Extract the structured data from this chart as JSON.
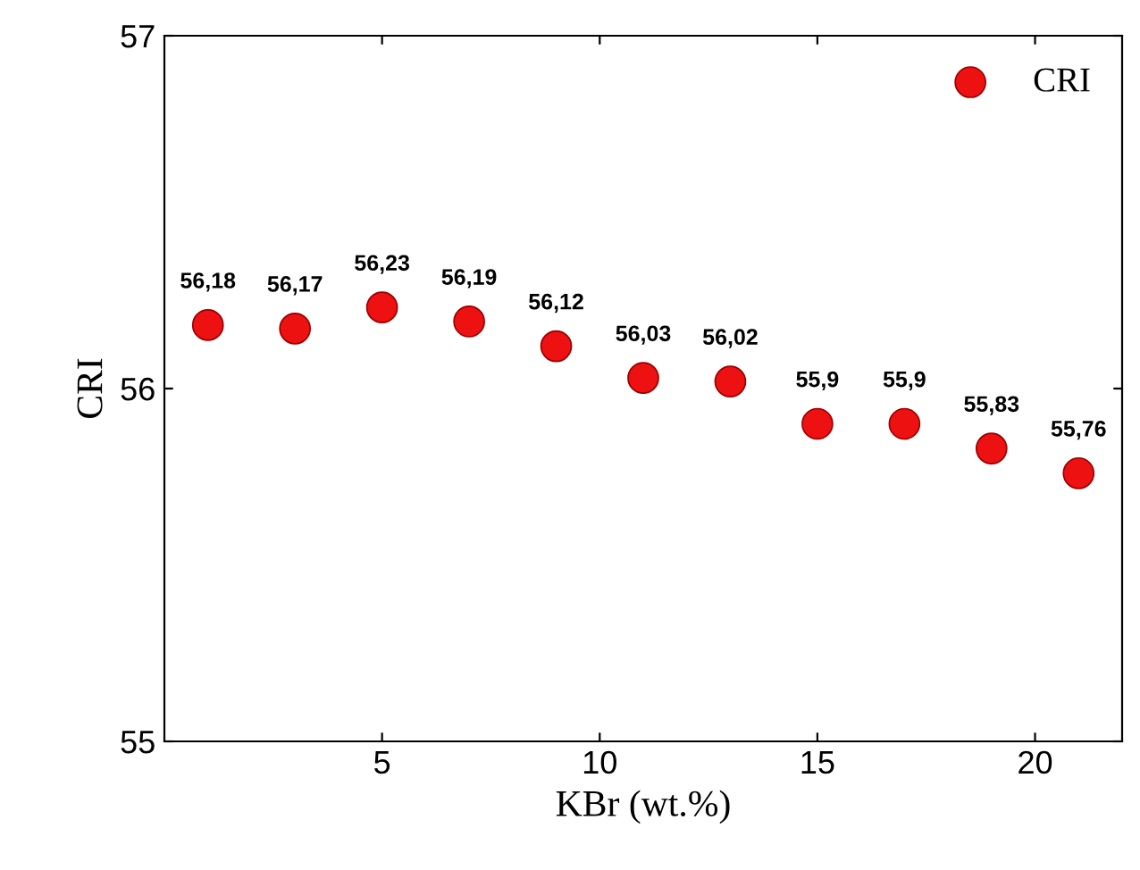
{
  "chart_data": {
    "type": "scatter",
    "xlabel": "KBr (wt.%)",
    "ylabel": "CRI",
    "x": [
      1,
      3,
      5,
      7,
      9,
      11,
      13,
      15,
      17,
      19,
      21
    ],
    "series": [
      {
        "name": "CRI",
        "color": "#ee1111",
        "values": [
          56.18,
          56.17,
          56.23,
          56.19,
          56.12,
          56.03,
          56.02,
          55.9,
          55.9,
          55.83,
          55.76
        ],
        "value_labels": [
          "56,18",
          "56,17",
          "56,23",
          "56,19",
          "56,12",
          "56,03",
          "56,02",
          "55,9",
          "55,9",
          "55,83",
          "55,76"
        ]
      }
    ],
    "xlim": [
      0,
      22
    ],
    "ylim": [
      55,
      57
    ],
    "xticks": [
      5,
      10,
      15,
      20
    ],
    "yticks": [
      55,
      56,
      57
    ],
    "marker": "circle",
    "legend": "top right",
    "grid": false
  }
}
